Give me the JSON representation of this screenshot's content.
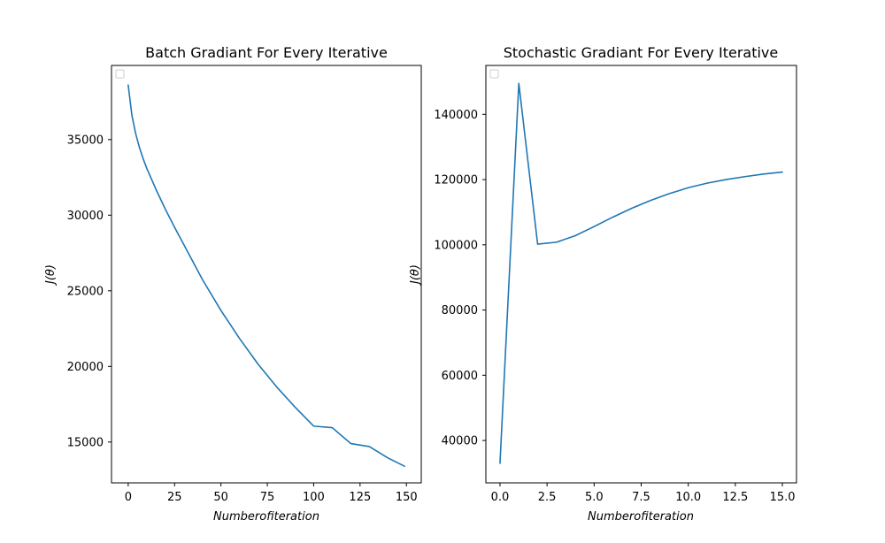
{
  "colors": {
    "series": "#1f77b4",
    "frame": "#000000",
    "background": "#ffffff"
  },
  "chart_data": [
    {
      "type": "line",
      "title": "Batch Gradiant For Every Iterative",
      "xlabel": "Numberofiteration",
      "ylabel": "J(θ)",
      "xlim": [
        -9,
        158
      ],
      "ylim": [
        12300,
        39900
      ],
      "xticks": [
        0,
        25,
        50,
        75,
        100,
        125,
        150
      ],
      "xtick_labels": [
        "0",
        "25",
        "50",
        "75",
        "100",
        "125",
        "150"
      ],
      "yticks": [
        15000,
        20000,
        25000,
        30000,
        35000
      ],
      "ytick_labels": [
        "15000",
        "20000",
        "25000",
        "30000",
        "35000"
      ],
      "grid": false,
      "legend": {
        "placement": "top-left",
        "entries": []
      },
      "series": [
        {
          "x": [
            0,
            2,
            4,
            6,
            8,
            10,
            15,
            20,
            25,
            30,
            40,
            50,
            60,
            70,
            80,
            90,
            100,
            110,
            120,
            130,
            140,
            149
          ],
          "values": [
            38600,
            36600,
            35400,
            34500,
            33750,
            33100,
            31700,
            30400,
            29200,
            28050,
            25750,
            23700,
            21850,
            20150,
            18650,
            17300,
            16050,
            15950,
            14900,
            14700,
            13950,
            13400
          ]
        }
      ]
    },
    {
      "type": "line",
      "title": "Stochastic Gradiant For Every Iterative",
      "xlabel": "Numberofiteration",
      "ylabel": "J(θ)",
      "xlim": [
        -0.75,
        15.75
      ],
      "ylim": [
        27000,
        155000
      ],
      "xticks": [
        0,
        2.5,
        5,
        7.5,
        10,
        12.5,
        15
      ],
      "xtick_labels": [
        "0.0",
        "2.5",
        "5.0",
        "7.5",
        "10.0",
        "12.5",
        "15.0"
      ],
      "yticks": [
        40000,
        60000,
        80000,
        100000,
        120000,
        140000
      ],
      "ytick_labels": [
        "40000",
        "60000",
        "80000",
        "100000",
        "120000",
        "140000"
      ],
      "grid": false,
      "legend": {
        "placement": "top-left",
        "entries": []
      },
      "series": [
        {
          "x": [
            0,
            1,
            2,
            3,
            4,
            5,
            6,
            7,
            8,
            9,
            10,
            11,
            12,
            13,
            14,
            15
          ],
          "values": [
            33000,
            149500,
            100200,
            100800,
            102800,
            105600,
            108500,
            111200,
            113600,
            115700,
            117500,
            118900,
            120000,
            120900,
            121700,
            122300
          ]
        }
      ]
    }
  ]
}
